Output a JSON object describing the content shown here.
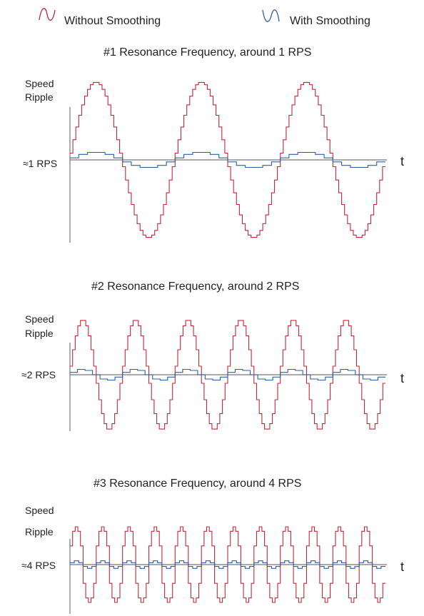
{
  "legend": [
    {
      "label": "Without Smoothing",
      "icon": "red-sine-wave-icon",
      "color": "#c0283a"
    },
    {
      "label": "With Smoothing",
      "icon": "blue-sine-wave-icon",
      "color": "#2f5f9e"
    }
  ],
  "panels": [
    {
      "title": "#1 Resonance Frequency, around 1 RPS",
      "y_label_line1": "Speed",
      "y_label_line2": "Ripple",
      "baseline_label": "≈1 RPS",
      "x_label": "t",
      "cycles": 3,
      "steps_per_cycle": 36,
      "unsmoothed_amplitude": 1.0,
      "smoothed_amplitude": 0.1
    },
    {
      "title": "#2 Resonance Frequency, around 2 RPS",
      "y_label_line1": "Speed",
      "y_label_line2": "Ripple",
      "baseline_label": "≈2 RPS",
      "x_label": "t",
      "cycles": 6,
      "steps_per_cycle": 20,
      "unsmoothed_amplitude": 1.0,
      "smoothed_amplitude": 0.1
    },
    {
      "title": "#3 Resonance Frequency, around 4 RPS",
      "y_label_line1": "Speed",
      "y_label_line2": "Ripple",
      "baseline_label": "≈4 RPS",
      "x_label": "t",
      "cycles": 12,
      "steps_per_cycle": 10,
      "unsmoothed_amplitude": 1.0,
      "smoothed_amplitude": 0.1
    }
  ],
  "colors": {
    "without_smoothing": "#c0283a",
    "with_smoothing": "#2f5f9e",
    "axis": "#777777"
  }
}
